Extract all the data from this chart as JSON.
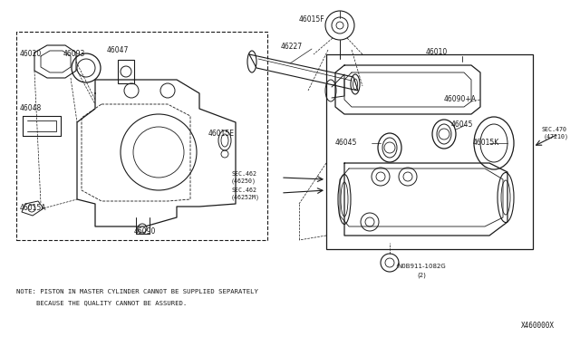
{
  "bg_color": "#ffffff",
  "lc": "#1a1a1a",
  "note1": "NOTE: PISTON IN MASTER CYLINDER CANNOT BE SUPPLIED SEPARATELY",
  "note2": "      BECAUSE THE QUALITY CANNOT BE ASSURED.",
  "watermark": "X460000X",
  "fig_w": 6.4,
  "fig_h": 3.72,
  "dpi": 100
}
